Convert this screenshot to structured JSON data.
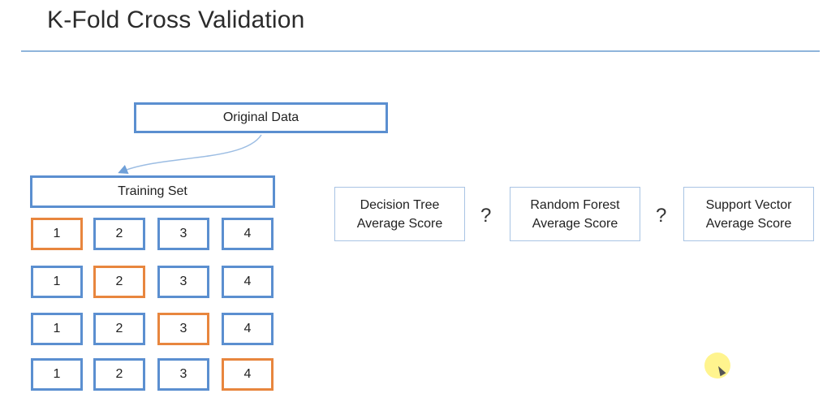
{
  "title": "K-Fold Cross Validation",
  "original_data": "Original Data",
  "training_set": "Training Set",
  "folds": [
    {
      "cells": [
        "1",
        "2",
        "3",
        "4"
      ],
      "test_index": 0
    },
    {
      "cells": [
        "1",
        "2",
        "3",
        "4"
      ],
      "test_index": 1
    },
    {
      "cells": [
        "1",
        "2",
        "3",
        "4"
      ],
      "test_index": 2
    },
    {
      "cells": [
        "1",
        "2",
        "3",
        "4"
      ],
      "test_index": 3
    }
  ],
  "models": [
    {
      "line1": "Decision Tree",
      "line2": "Average Score"
    },
    {
      "line1": "Random Forest",
      "line2": "Average Score"
    },
    {
      "line1": "Support Vector",
      "line2": "Average Score"
    }
  ],
  "separator": "?",
  "colors": {
    "box_border": "#5b8fd0",
    "test_fold": "#e8863e",
    "rule": "#8fb5db",
    "model_border": "#a9c4e4"
  }
}
